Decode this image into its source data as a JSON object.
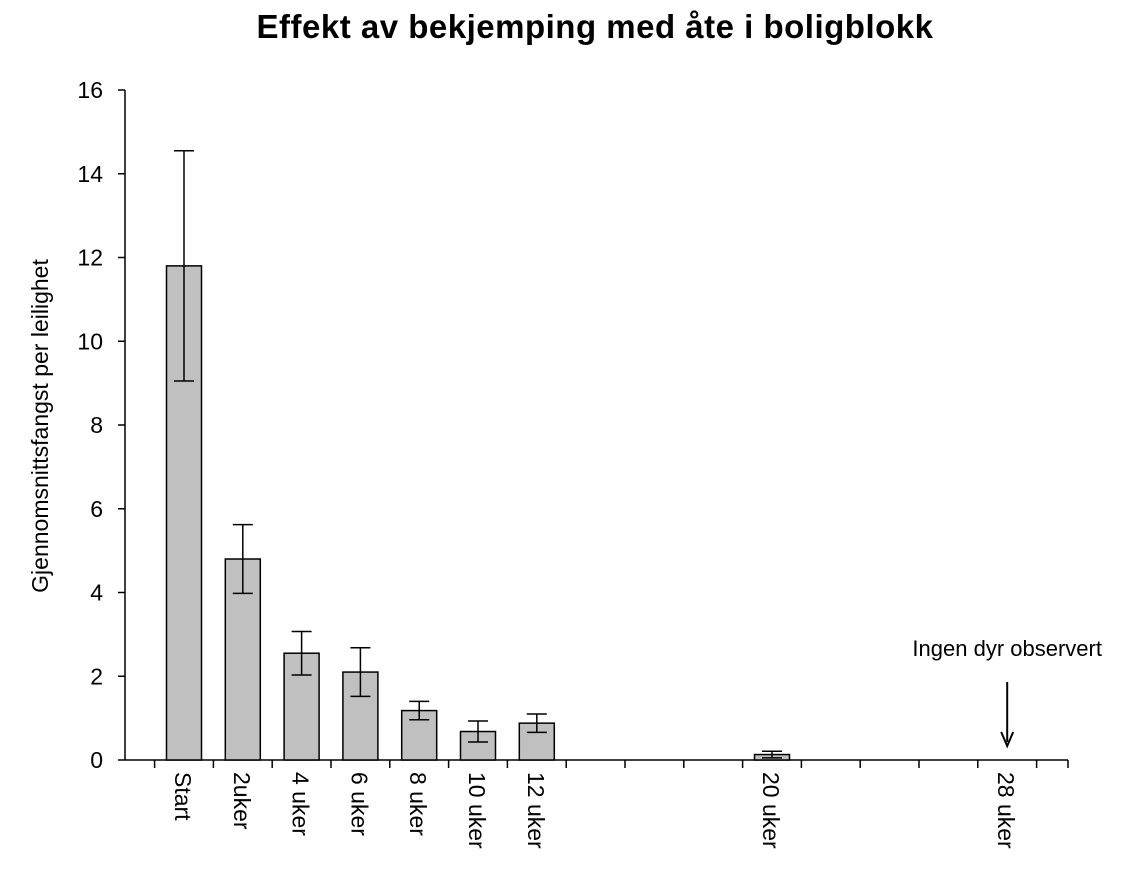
{
  "chart_data": {
    "type": "bar",
    "title": "Effekt av bekjemping med åte i boligblokk",
    "xlabel": "",
    "ylabel": "Gjennomsnittsfangst per leilighet",
    "ylim": [
      0,
      16
    ],
    "yticks": [
      0,
      2,
      4,
      6,
      8,
      10,
      12,
      14,
      16
    ],
    "weeks_ticks": [
      0,
      2,
      4,
      6,
      8,
      10,
      12,
      14,
      16,
      18,
      20,
      22,
      24,
      26,
      28,
      30
    ],
    "categories": [
      "Start",
      "2uker",
      "4 uker",
      "6 uker",
      "8 uker",
      "10 uker",
      "12 uker",
      "20 uker",
      "28 uker"
    ],
    "weeks": [
      0,
      2,
      4,
      6,
      8,
      10,
      12,
      20,
      28
    ],
    "values": [
      11.8,
      4.8,
      2.55,
      2.1,
      1.18,
      0.68,
      0.88,
      0.13,
      0
    ],
    "error": [
      2.75,
      0.82,
      0.52,
      0.58,
      0.22,
      0.25,
      0.22,
      0.08,
      0
    ],
    "bar_color": "#c0c0c0",
    "grid": false,
    "annotation": {
      "text": "Ingen dyr observert",
      "category": "28 uker"
    }
  }
}
